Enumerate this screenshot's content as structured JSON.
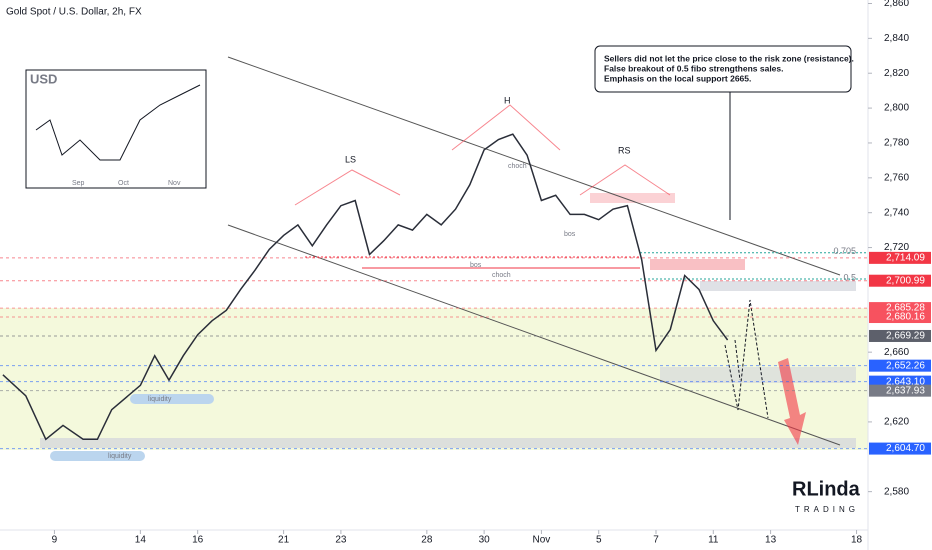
{
  "chart_data": {
    "type": "line",
    "title": "Gold Spot / U.S. Dollar, 2h, FX",
    "color": "#2a2e39",
    "x": [
      -1.8,
      -1,
      -0.3,
      0.3,
      1,
      1.5,
      2,
      3,
      3.5,
      4,
      4.5,
      5,
      5.5,
      6,
      6.5,
      7,
      7.5,
      8,
      8.5,
      9,
      9.5,
      10,
      10.5,
      11,
      11.5,
      12,
      12.5,
      13,
      13.5,
      14,
      14.5,
      15,
      15.5,
      16,
      16.5,
      17,
      17.5,
      18,
      18.5,
      19,
      19.5,
      20,
      20.5,
      21,
      21.5,
      22,
      22.5,
      23,
      23.5
    ],
    "values": [
      2647,
      2635,
      2610,
      2618,
      2610,
      2610,
      2627,
      2641,
      2658,
      2644,
      2658,
      2670,
      2678,
      2684,
      2696,
      2707,
      2719,
      2727,
      2733,
      2721,
      2733,
      2744,
      2747,
      2716,
      2724,
      2733,
      2730,
      2739,
      2733,
      2742,
      2756,
      2776,
      2782,
      2785,
      2773,
      2747,
      2750,
      2739,
      2739,
      2736,
      2742,
      2744,
      2713,
      2661,
      2673,
      2704,
      2696,
      2678,
      2667
    ],
    "xlim": [
      -1.9,
      28.4
    ],
    "xticks": [
      {
        "value": 0,
        "label": "9"
      },
      {
        "value": 3,
        "label": "14"
      },
      {
        "value": 5,
        "label": "16"
      },
      {
        "value": 8,
        "label": "21"
      },
      {
        "value": 10,
        "label": "23"
      },
      {
        "value": 13,
        "label": "28"
      },
      {
        "value": 15,
        "label": "30"
      },
      {
        "value": 17,
        "label": "Nov"
      },
      {
        "value": 19,
        "label": "5"
      },
      {
        "value": 21,
        "label": "7"
      },
      {
        "value": 23,
        "label": "11"
      },
      {
        "value": 25,
        "label": "13"
      },
      {
        "value": 28,
        "label": "18"
      }
    ],
    "ylim": [
      2558,
      2862
    ],
    "yticks": [
      {
        "value": 2580,
        "label": "2,580"
      },
      {
        "value": 2620,
        "label": "2,620"
      },
      {
        "value": 2660,
        "label": "2,660"
      },
      {
        "value": 2720,
        "label": "2,720"
      },
      {
        "value": 2740,
        "label": "2,740"
      },
      {
        "value": 2760,
        "label": "2,760"
      },
      {
        "value": 2780,
        "label": "2,780"
      },
      {
        "value": 2800,
        "label": "2,800"
      },
      {
        "value": 2820,
        "label": "2,820"
      },
      {
        "value": 2840,
        "label": "2,840"
      },
      {
        "value": 2860,
        "label": "2,860"
      }
    ],
    "price_levels": [
      {
        "value": 2714.09,
        "label": "2,714.09",
        "color": "#f23645"
      },
      {
        "value": 2700.99,
        "label": "2,700.99",
        "color": "#f23645"
      },
      {
        "value": 2685.28,
        "label": "2,685.28",
        "color": "#f7525f"
      },
      {
        "value": 2680.16,
        "label": "2,680.16",
        "color": "#f7525f"
      },
      {
        "value": 2669.29,
        "label": "2,669.29",
        "color": "#5d606b"
      },
      {
        "value": 2652.26,
        "label": "2,652.26",
        "color": "#2962ff"
      },
      {
        "value": 2643.1,
        "label": "2,643.10",
        "color": "#2962ff"
      },
      {
        "value": 2637.93,
        "label": "2,637.93",
        "color": "#787b86"
      },
      {
        "value": 2604.7,
        "label": "2,604.70",
        "color": "#2962ff"
      }
    ],
    "fib_levels": [
      {
        "value": 2717,
        "label": "0.705"
      },
      {
        "value": 2702,
        "label": "0.5"
      }
    ],
    "note": [
      "Sellers did not let the price close to the risk zone (resistance).",
      "False breakout of 0.5 fibo strengthens sales.",
      "Emphasis on the local support 2665."
    ],
    "patterns": {
      "ls": "LS",
      "h": "H",
      "rs": "RS",
      "bos": "bos",
      "choch": "choch",
      "liquidity": "liquidity"
    },
    "inset": {
      "title": "USD",
      "months": [
        "Sep",
        "Oct",
        "Nov"
      ]
    },
    "logo": {
      "name": "RLinda",
      "sub": "TRADING"
    }
  }
}
